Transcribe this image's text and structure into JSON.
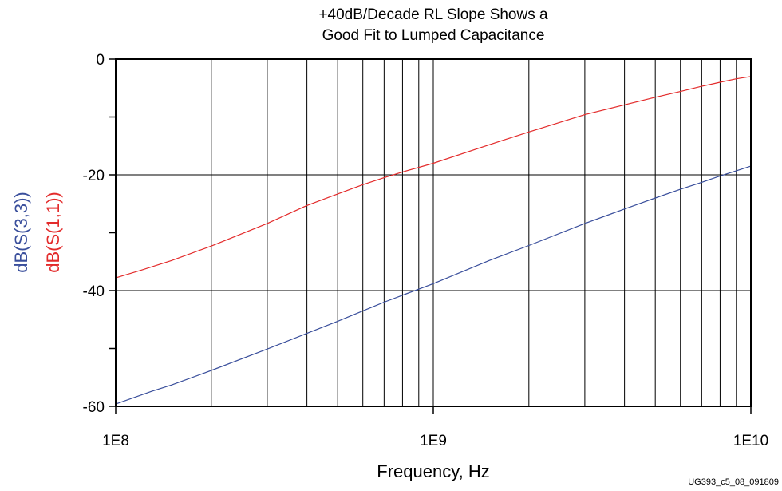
{
  "chart_data": {
    "type": "line",
    "title_lines": [
      "+40dB/Decade RL Slope Shows a",
      "Good Fit to Lumped Capacitance"
    ],
    "xlabel": "Frequency, Hz",
    "ylabels": [
      {
        "text": "dB(S(3,3))",
        "color": "#3a4f9c"
      },
      {
        "text": "dB(S(1,1))",
        "color": "#e32b2b"
      }
    ],
    "x_scale": "log",
    "xlim": [
      100000000,
      10000000000
    ],
    "ylim": [
      -60,
      0
    ],
    "x_ticks": [
      {
        "value": 100000000,
        "label": "1E8"
      },
      {
        "value": 1000000000,
        "label": "1E9"
      },
      {
        "value": 10000000000,
        "label": "1E10"
      }
    ],
    "y_ticks": [
      {
        "value": 0,
        "label": "0"
      },
      {
        "value": -20,
        "label": "-20"
      },
      {
        "value": -40,
        "label": "-40"
      },
      {
        "value": -60,
        "label": "-60"
      }
    ],
    "grid": true,
    "series": [
      {
        "name": "dB(S(1,1))",
        "color": "#e32b2b",
        "x": [
          100000000,
          120000000,
          150000000,
          200000000,
          300000000,
          400000000,
          500000000,
          600000000,
          700000000,
          800000000,
          1000000000,
          1500000000,
          2000000000,
          3000000000,
          4000000000,
          5000000000,
          6000000000,
          7000000000,
          8000000000,
          9000000000,
          10000000000
        ],
        "y": [
          -37.8,
          -36.5,
          -34.8,
          -32.3,
          -28.4,
          -25.3,
          -23.3,
          -21.7,
          -20.5,
          -19.5,
          -18.0,
          -14.8,
          -12.6,
          -9.6,
          -7.9,
          -6.6,
          -5.6,
          -4.7,
          -4.0,
          -3.4,
          -3.0
        ]
      },
      {
        "name": "dB(S(3,3))",
        "color": "#3a4f9c",
        "x": [
          100000000,
          130000000,
          150000000,
          200000000,
          300000000,
          400000000,
          500000000,
          600000000,
          700000000,
          800000000,
          1000000000,
          1500000000,
          2000000000,
          3000000000,
          4000000000,
          5000000000,
          6000000000,
          7000000000,
          8000000000,
          9000000000,
          10000000000
        ],
        "y": [
          -59.6,
          -57.4,
          -56.3,
          -53.8,
          -50.1,
          -47.4,
          -45.3,
          -43.5,
          -42.0,
          -40.8,
          -38.8,
          -34.8,
          -32.2,
          -28.4,
          -25.9,
          -24.0,
          -22.5,
          -21.3,
          -20.2,
          -19.3,
          -18.5
        ]
      }
    ]
  },
  "figure_id": "UG393_c5_08_091809"
}
